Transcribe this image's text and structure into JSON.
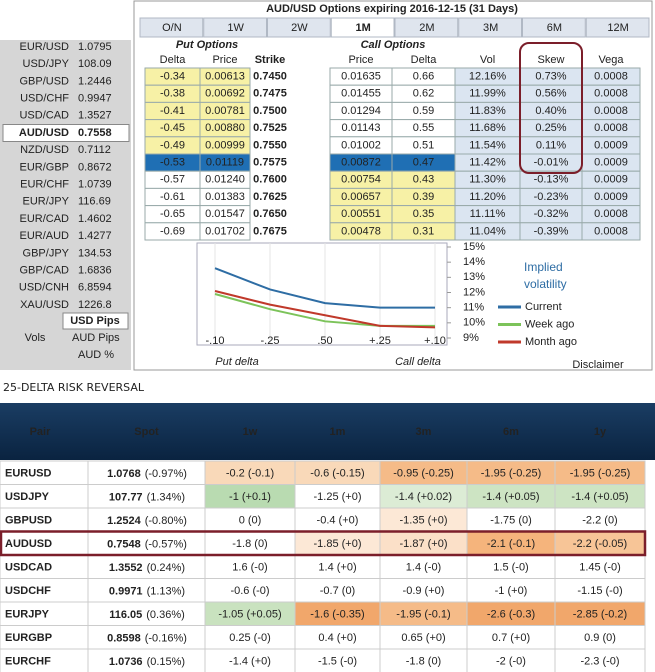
{
  "sidebar": {
    "rows": [
      {
        "pair": "EUR/USD",
        "price": "1.0795",
        "color": "#2e8b2e"
      },
      {
        "pair": "USD/JPY",
        "price": "108.09",
        "color": "#e02020"
      },
      {
        "pair": "GBP/USD",
        "price": "1.2446",
        "color": "#e02020"
      },
      {
        "pair": "USD/CHF",
        "price": "0.9947",
        "color": "#333333"
      },
      {
        "pair": "USD/CAD",
        "price": "1.3527",
        "color": "#2e8b2e"
      },
      {
        "pair": "AUD/USD",
        "price": "0.7558",
        "color": "#000000"
      },
      {
        "pair": "NZD/USD",
        "price": "0.7112",
        "color": "#333333"
      },
      {
        "pair": "EUR/GBP",
        "price": "0.8672",
        "color": "#2e8b2e"
      },
      {
        "pair": "EUR/CHF",
        "price": "1.0739",
        "color": "#e02020"
      },
      {
        "pair": "EUR/JPY",
        "price": "116.69",
        "color": "#2e8b2e"
      },
      {
        "pair": "EUR/CAD",
        "price": "1.4602",
        "color": "#2e8b2e"
      },
      {
        "pair": "EUR/AUD",
        "price": "1.4277",
        "color": "#2e8b2e"
      },
      {
        "pair": "GBP/JPY",
        "price": "134.53",
        "color": "#e02020"
      },
      {
        "pair": "GBP/CAD",
        "price": "1.6836",
        "color": "#333333"
      },
      {
        "pair": "USD/CNH",
        "price": "6.8594",
        "color": "#e02020"
      },
      {
        "pair": "XAU/USD",
        "price": "1226.8",
        "color": "#333333"
      }
    ],
    "selected_row": 5,
    "usd_pips": "USD Pips",
    "vols": "Vols",
    "aud_pips": "AUD Pips",
    "aud_pct": "AUD %"
  },
  "options": {
    "title": "AUD/USD Options expiring 2016-12-15 (31 Days)",
    "tabs": [
      "O/N",
      "1W",
      "2W",
      "1M",
      "2M",
      "3M",
      "6M",
      "12M"
    ],
    "selected_tab": 3,
    "put_header": "Put Options",
    "call_header": "Call Options",
    "columns": [
      "Delta",
      "Price",
      "Strike",
      "Price",
      "Delta",
      "Vol",
      "Skew",
      "Vega"
    ],
    "rows": [
      [
        "-0.34",
        "0.00613",
        "0.7450",
        "0.01635",
        "0.66",
        "12.16%",
        "0.73%",
        "0.0008"
      ],
      [
        "-0.38",
        "0.00692",
        "0.7475",
        "0.01455",
        "0.62",
        "11.99%",
        "0.56%",
        "0.0008"
      ],
      [
        "-0.41",
        "0.00781",
        "0.7500",
        "0.01294",
        "0.59",
        "11.83%",
        "0.40%",
        "0.0008"
      ],
      [
        "-0.45",
        "0.00880",
        "0.7525",
        "0.01143",
        "0.55",
        "11.68%",
        "0.25%",
        "0.0008"
      ],
      [
        "-0.49",
        "0.00999",
        "0.7550",
        "0.01002",
        "0.51",
        "11.54%",
        "0.11%",
        "0.0009"
      ],
      [
        "-0.53",
        "0.01119",
        "0.7575",
        "0.00872",
        "0.47",
        "11.42%",
        "-0.01%",
        "0.0009"
      ],
      [
        "-0.57",
        "0.01240",
        "0.7600",
        "0.00754",
        "0.43",
        "11.30%",
        "-0.13%",
        "0.0009"
      ],
      [
        "-0.61",
        "0.01383",
        "0.7625",
        "0.00657",
        "0.39",
        "11.20%",
        "-0.23%",
        "0.0009"
      ],
      [
        "-0.65",
        "0.01547",
        "0.7650",
        "0.00551",
        "0.35",
        "11.11%",
        "-0.32%",
        "0.0008"
      ],
      [
        "-0.69",
        "0.01702",
        "0.7675",
        "0.00478",
        "0.31",
        "11.04%",
        "-0.39%",
        "0.0008"
      ]
    ],
    "atm_row": 5,
    "disclaimer": "Disclaimer"
  },
  "chart_data": {
    "type": "line",
    "legend_title": "Implied volatility",
    "x_label_left": "Put delta",
    "x_label_right": "Call delta",
    "categories": [
      "-.10",
      "-.25",
      ".50",
      "+.25",
      "+.10"
    ],
    "series": [
      {
        "name": "Current",
        "color": "#2e6da4",
        "values": [
          13.6,
          12.2,
          11.3,
          11.0,
          11.0
        ]
      },
      {
        "name": "Week ago",
        "color": "#7cc35a",
        "values": [
          11.9,
          10.9,
          10.1,
          9.8,
          9.8
        ]
      },
      {
        "name": "Month ago",
        "color": "#c0392b",
        "values": [
          12.1,
          11.2,
          10.5,
          9.8,
          9.7
        ]
      }
    ],
    "ylim": [
      9,
      15
    ],
    "yticks": [
      {
        "value": 9,
        "label": "9%"
      },
      {
        "value": 10,
        "label": "10%"
      },
      {
        "value": 11,
        "label": "11%"
      },
      {
        "value": 12,
        "label": "12%"
      },
      {
        "value": 13,
        "label": "13%"
      },
      {
        "value": 14,
        "label": "14%"
      },
      {
        "value": 15,
        "label": "15%"
      }
    ],
    "grid": true
  },
  "risk_reversal": {
    "title": "25-DELTA RISK REVERSAL",
    "columns": [
      "Pair",
      "Spot",
      "1w",
      "1m",
      "3m",
      "6m",
      "1y"
    ],
    "rows": [
      {
        "pair": "EURUSD",
        "spot": "1.0768",
        "change": "(-0.97%)",
        "cells": [
          "-0.2 (-0.1)",
          "-0.6 (-0.15)",
          "-0.95 (-0.25)",
          "-1.95 (-0.25)",
          "-1.95 (-0.25)"
        ],
        "colors": [
          "#f9d9b9",
          "#f9d9b9",
          "#f5bb88",
          "#f5bb88",
          "#f5bb88"
        ]
      },
      {
        "pair": "USDJPY",
        "spot": "107.77",
        "change": "(1.34%)",
        "cells": [
          "-1 (+0.1)",
          "-1.25 (+0)",
          "-1.4 (+0.02)",
          "-1.4 (+0.05)",
          "-1.4 (+0.05)"
        ],
        "colors": [
          "#b9dbb1",
          "#ffffff",
          "#dcecd5",
          "#cde4c3",
          "#cde4c3"
        ]
      },
      {
        "pair": "GBPUSD",
        "spot": "1.2524",
        "change": "(-0.80%)",
        "cells": [
          "0 (0)",
          "-0.4 (+0)",
          "-1.35 (+0)",
          "-1.75 (0)",
          "-2.2 (0)"
        ],
        "colors": [
          "#ffffff",
          "#ffffff",
          "#fce8d6",
          "#ffffff",
          "#ffffff"
        ]
      },
      {
        "pair": "AUDUSD",
        "spot": "0.7548",
        "change": "(-0.57%)",
        "cells": [
          "-1.8 (0)",
          "-1.85 (+0)",
          "-1.87 (+0)",
          "-2.1 (-0.1)",
          "-2.2 (-0.05)"
        ],
        "colors": [
          "#ffffff",
          "#fce8d6",
          "#fbe0c8",
          "#f5b47c",
          "#f7c597"
        ]
      },
      {
        "pair": "USDCAD",
        "spot": "1.3552",
        "change": "(0.24%)",
        "cells": [
          "1.6 (-0)",
          "1.4 (+0)",
          "1.4 (-0)",
          "1.5 (-0)",
          "1.45 (-0)"
        ],
        "colors": [
          "#ffffff",
          "#ffffff",
          "#ffffff",
          "#ffffff",
          "#ffffff"
        ]
      },
      {
        "pair": "USDCHF",
        "spot": "0.9971",
        "change": "(1.13%)",
        "cells": [
          "-0.6 (-0)",
          "-0.7 (0)",
          "-0.9 (+0)",
          "-1 (+0)",
          "-1.15 (-0)"
        ],
        "colors": [
          "#ffffff",
          "#ffffff",
          "#ffffff",
          "#ffffff",
          "#ffffff"
        ]
      },
      {
        "pair": "EURJPY",
        "spot": "116.05",
        "change": "(0.36%)",
        "cells": [
          "-1.05 (+0.05)",
          "-1.6 (-0.35)",
          "-1.95 (-0.1)",
          "-2.6 (-0.3)",
          "-2.85 (-0.2)"
        ],
        "colors": [
          "#c9e2bf",
          "#f1a76b",
          "#f5bb88",
          "#f1a76b",
          "#f1a76b"
        ]
      },
      {
        "pair": "EURGBP",
        "spot": "0.8598",
        "change": "(-0.16%)",
        "cells": [
          "0.25 (-0)",
          "0.4 (+0)",
          "0.65 (+0)",
          "0.7 (+0)",
          "0.9 (0)"
        ],
        "colors": [
          "#ffffff",
          "#ffffff",
          "#ffffff",
          "#ffffff",
          "#ffffff"
        ]
      },
      {
        "pair": "EURCHF",
        "spot": "1.0736",
        "change": "(0.15%)",
        "cells": [
          "-1.4 (+0)",
          "-1.5 (-0)",
          "-1.8 (0)",
          "-2 (-0)",
          "-2.3 (-0)"
        ],
        "colors": [
          "#ffffff",
          "#ffffff",
          "#ffffff",
          "#ffffff",
          "#ffffff"
        ]
      }
    ],
    "highlight_row": 3
  }
}
